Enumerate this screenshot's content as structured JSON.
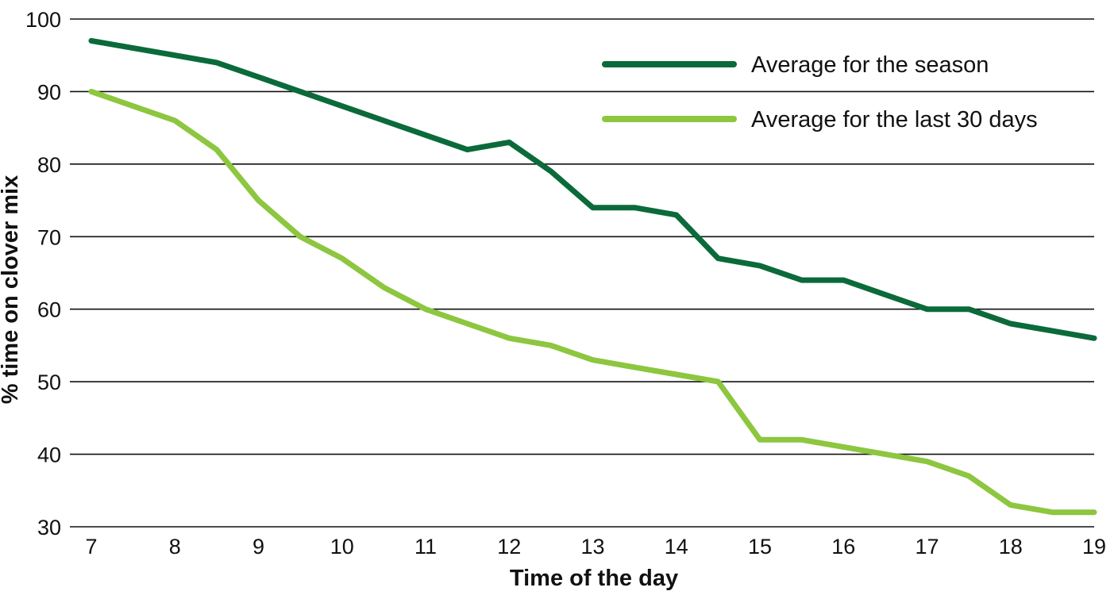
{
  "chart_data": {
    "type": "line",
    "xlabel": "Time of the day",
    "ylabel": "% time on clover mix",
    "x_ticks": [
      7,
      8,
      9,
      10,
      11,
      12,
      13,
      14,
      15,
      16,
      17,
      18,
      19
    ],
    "y_ticks": [
      30,
      40,
      50,
      60,
      70,
      80,
      90,
      100
    ],
    "xlim": [
      7,
      19
    ],
    "ylim": [
      30,
      100
    ],
    "grid": "horizontal",
    "legend_position": "top-right",
    "x": [
      7,
      7.5,
      8,
      8.5,
      9,
      9.5,
      10,
      10.5,
      11,
      11.5,
      12,
      12.5,
      13,
      13.5,
      14,
      14.5,
      15,
      15.5,
      16,
      16.5,
      17,
      17.5,
      18,
      18.5,
      19
    ],
    "series": [
      {
        "name": "Average for the season",
        "color": "#0b6a3a",
        "values": [
          97,
          96,
          95,
          94,
          92,
          90,
          88,
          86,
          84,
          82,
          83,
          79,
          74,
          74,
          73,
          67,
          66,
          64,
          64,
          62,
          60,
          60,
          58,
          57,
          56
        ]
      },
      {
        "name": "Average for the last 30 days",
        "color": "#8dc63f",
        "values": [
          90,
          88,
          86,
          82,
          75,
          70,
          67,
          63,
          60,
          58,
          56,
          55,
          53,
          52,
          51,
          50,
          42,
          42,
          41,
          40,
          39,
          37,
          33,
          32,
          32
        ]
      }
    ]
  }
}
